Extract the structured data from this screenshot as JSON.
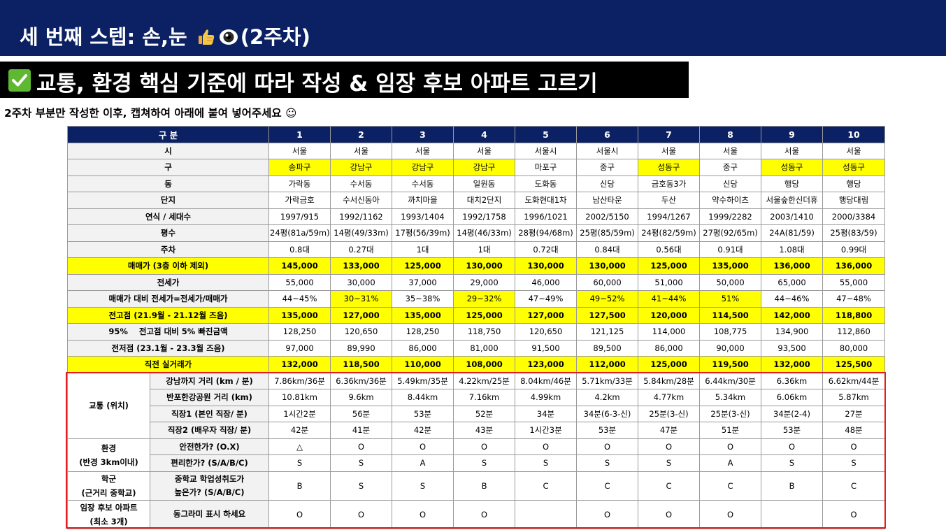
{
  "header": {
    "title_prefix": "세 번째 스텝: 손,눈",
    "title_suffix": "(2주차)",
    "thumb_icon": "thumbs-up-icon",
    "eye_icon": "eye-icon"
  },
  "subheader": {
    "check_icon": "check-mark-icon",
    "title": "교통, 환경 핵심 기준에 따라 작성 & 임장 후보 아파트 고르기"
  },
  "instruction": "2주차 부분만 작성한 이후, 캡쳐하여 아래에 붙여 넣어주세요 ☺",
  "table": {
    "header_label": "구 분",
    "columns": [
      "1",
      "2",
      "3",
      "4",
      "5",
      "6",
      "7",
      "8",
      "9",
      "10"
    ],
    "rows": [
      {
        "label": "시",
        "values": [
          "서울",
          "서울",
          "서울",
          "서울",
          "서울시",
          "서울시",
          "서울",
          "서울",
          "서울",
          "서울"
        ]
      },
      {
        "label": "구",
        "values": [
          "송파구",
          "강남구",
          "강남구",
          "강남구",
          "마포구",
          "중구",
          "성동구",
          "중구",
          "성동구",
          "성동구"
        ]
      },
      {
        "label": "동",
        "values": [
          "가락동",
          "수서동",
          "수서동",
          "일원동",
          "도화동",
          "신당",
          "금호동3가",
          "신당",
          "행당",
          "행당"
        ]
      },
      {
        "label": "단지",
        "values": [
          "가락금호",
          "수서신동아",
          "까치마을",
          "대치2단지",
          "도화현대1차",
          "남산타운",
          "두산",
          "약수하이츠",
          "서울숲한신더휴",
          "행당대림"
        ]
      },
      {
        "label": "연식 / 세대수",
        "values": [
          "1997/915",
          "1992/1162",
          "1993/1404",
          "1992/1758",
          "1996/1021",
          "2002/5150",
          "1994/1267",
          "1999/2282",
          "2003/1410",
          "2000/3384"
        ]
      },
      {
        "label": "평수",
        "values": [
          "24평(81a/59m)",
          "14평(49/33m)",
          "17평(56/39m)",
          "14평(46/33m)",
          "28평(94/68m)",
          "25평(85/59m)",
          "24평(82/59m)",
          "27평(92/65m)",
          "24A(81/59)",
          "25평(83/59)"
        ]
      },
      {
        "label": "주차",
        "values": [
          "0.8대",
          "0.27대",
          "1대",
          "1대",
          "0.72대",
          "0.84대",
          "0.56대",
          "0.91대",
          "1.08대",
          "0.99대"
        ]
      },
      {
        "label": "매매가 (3층 이하 제외)",
        "values": [
          "145,000",
          "133,000",
          "125,000",
          "130,000",
          "130,000",
          "130,000",
          "125,000",
          "135,000",
          "136,000",
          "136,000"
        ]
      },
      {
        "label": "전세가",
        "values": [
          "55,000",
          "30,000",
          "37,000",
          "29,000",
          "46,000",
          "60,000",
          "51,000",
          "50,000",
          "65,000",
          "55,000"
        ]
      },
      {
        "label": "매매가 대비 전세가=전세가/매매가",
        "values": [
          "44~45%",
          "30~31%",
          "35~38%",
          "29~32%",
          "47~49%",
          "49~52%",
          "41~44%",
          "51%",
          "44~46%",
          "47~48%"
        ]
      },
      {
        "label": "전고점 (21.9월 - 21.12월 즈음)",
        "values": [
          "135,000",
          "127,000",
          "135,000",
          "125,000",
          "127,000",
          "127,500",
          "120,000",
          "114,500",
          "142,000",
          "118,800"
        ]
      },
      {
        "label_pct": "95%",
        "label": "전고점 대비 5% 빠진금액",
        "values": [
          "128,250",
          "120,650",
          "128,250",
          "118,750",
          "120,650",
          "121,125",
          "114,000",
          "108,775",
          "134,900",
          "112,860"
        ]
      },
      {
        "label": "전저점 (23.1월 - 23.3월 즈음)",
        "values": [
          "97,000",
          "89,990",
          "86,000",
          "81,000",
          "91,500",
          "89,500",
          "86,000",
          "90,000",
          "93,500",
          "80,000"
        ]
      },
      {
        "label": "직전 실거래가",
        "values": [
          "132,000",
          "118,500",
          "110,000",
          "108,000",
          "123,000",
          "112,000",
          "125,000",
          "119,500",
          "132,000",
          "125,500"
        ]
      }
    ],
    "groups": {
      "traffic": {
        "label": "교통 (위치)",
        "rows": [
          {
            "label": "강남까지 거리 (km / 분)",
            "values": [
              "7.86km/36분",
              "6.36km/36분",
              "5.49km/35분",
              "4.22km/25분",
              "8.04km/46분",
              "5.71km/33분",
              "5.84km/28분",
              "6.44km/30분",
              "6.36km",
              "6.62km/44분"
            ]
          },
          {
            "label": "반포한강공원 거리 (km)",
            "values": [
              "10.81km",
              "9.6km",
              "8.44km",
              "7.16km",
              "4.99km",
              "4.2km",
              "4.77km",
              "5.34km",
              "6.06km",
              "5.87km"
            ]
          },
          {
            "label": "직장1 (본인 직장/ 분)",
            "values": [
              "1시간2분",
              "56분",
              "53분",
              "52분",
              "34분",
              "34분(6-3-신)",
              "25분(3-신)",
              "25분(3-신)",
              "34분(2-4)",
              "27분"
            ]
          },
          {
            "label": "직장2 (배우자 직장/ 분)",
            "values": [
              "42분",
              "41분",
              "42분",
              "43분",
              "1시간3분",
              "53분",
              "47분",
              "51분",
              "53분",
              "48분"
            ]
          }
        ]
      },
      "environment": {
        "label_line1": "환경",
        "label_line2": "(반경 3km이내)",
        "rows": [
          {
            "label": "안전한가? (O.X)",
            "values": [
              "△",
              "O",
              "O",
              "O",
              "O",
              "O",
              "O",
              "O",
              "O",
              "O"
            ]
          },
          {
            "label": "편리한가? (S/A/B/C)",
            "values": [
              "S",
              "S",
              "A",
              "S",
              "S",
              "S",
              "S",
              "A",
              "S",
              "S"
            ]
          }
        ]
      },
      "school": {
        "label_line1": "학군",
        "label_line2": "(근거리 중학교)",
        "row_label_line1": "중학교 학업성취도가",
        "row_label_line2": "높은가? (S/A/B/C)",
        "values": [
          "B",
          "S",
          "S",
          "B",
          "C",
          "C",
          "C",
          "C",
          "B",
          "C"
        ]
      },
      "candidate": {
        "label_line1": "임장 후보 아파트",
        "label_line2": "(최소 3개)",
        "row_label": "동그라미 표시 하세요",
        "values": [
          "O",
          "O",
          "O",
          "O",
          "",
          "O",
          "O",
          "O",
          "",
          "O"
        ]
      }
    }
  },
  "highlight": {
    "yellow_rows": [
      7,
      10,
      13
    ],
    "yellow_cells_gu": [
      0,
      1,
      2,
      3,
      6,
      8,
      9
    ],
    "yellow_cells_ratio": [
      1,
      3,
      5,
      6,
      7
    ]
  },
  "colors": {
    "header_bg": "#0b2163",
    "highlight": "#ffff00",
    "frame": "#e02020",
    "check": "#5fb832"
  }
}
